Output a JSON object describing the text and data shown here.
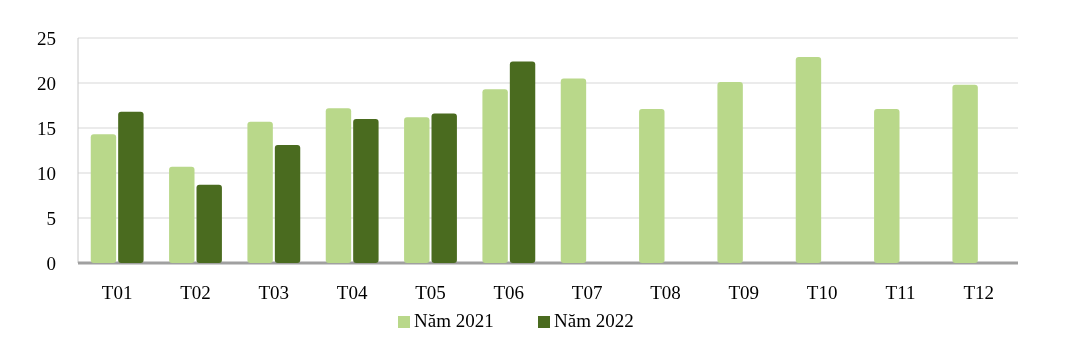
{
  "chart_data": {
    "type": "bar",
    "categories": [
      "T01",
      "T02",
      "T03",
      "T04",
      "T05",
      "T06",
      "T07",
      "T08",
      "T09",
      "T10",
      "T11",
      "T12"
    ],
    "series": [
      {
        "name": "Năm 2021",
        "color": "#b9d88a",
        "values": [
          14.3,
          10.7,
          15.7,
          17.2,
          16.2,
          19.3,
          20.5,
          17.1,
          20.1,
          22.9,
          17.1,
          19.8
        ]
      },
      {
        "name": "Năm 2022",
        "color": "#4a6b1f",
        "values": [
          16.8,
          8.7,
          13.1,
          16.0,
          16.6,
          22.4,
          null,
          null,
          null,
          null,
          null,
          null
        ]
      }
    ],
    "ylim": [
      0,
      25
    ],
    "yticks": [
      0,
      5,
      10,
      15,
      20,
      25
    ],
    "grid": "y",
    "legend": "bottom"
  }
}
